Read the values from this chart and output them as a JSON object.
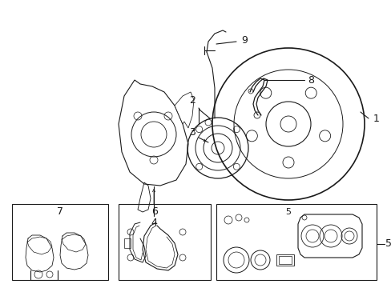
{
  "background_color": "#ffffff",
  "line_color": "#1a1a1a",
  "lw": 0.8,
  "tlw": 0.5,
  "fig_width": 4.89,
  "fig_height": 3.6,
  "dpi": 100,
  "xlim": [
    0,
    489
  ],
  "ylim": [
    0,
    360
  ]
}
